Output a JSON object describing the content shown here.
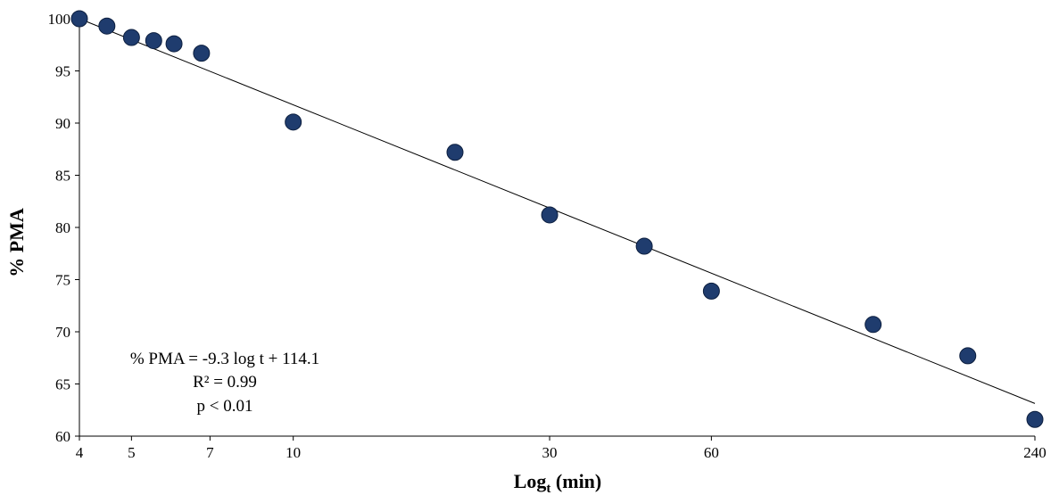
{
  "chart_data": {
    "type": "scatter",
    "x_scale": "log",
    "xlabel": "Log",
    "xlabel_sub": "t",
    "xlabel_unit": " (min)",
    "ylabel": "% PMA",
    "ylim": [
      60,
      100
    ],
    "yticks": [
      60,
      65,
      70,
      75,
      80,
      85,
      90,
      95,
      100
    ],
    "xticks": [
      4,
      5,
      7,
      10,
      30,
      60,
      240
    ],
    "point_color": "#1f3c6e",
    "series": [
      {
        "x": [
          4,
          4.5,
          5,
          5.5,
          6,
          6.75,
          10,
          20,
          30,
          45,
          60,
          120,
          180,
          240
        ],
        "y": [
          100,
          99.3,
          98.2,
          97.9,
          97.6,
          96.7,
          90.1,
          87.2,
          81.2,
          78.2,
          73.9,
          70.7,
          67.7,
          61.6
        ]
      }
    ],
    "trendline": {
      "slope": -9.3,
      "intercept": 114.1,
      "x_range": [
        4,
        240
      ]
    },
    "annotation": {
      "equation": "% PMA = -9.3 log t + 114.1",
      "r2": "R² = 0.99",
      "p": "p < 0.01"
    }
  }
}
